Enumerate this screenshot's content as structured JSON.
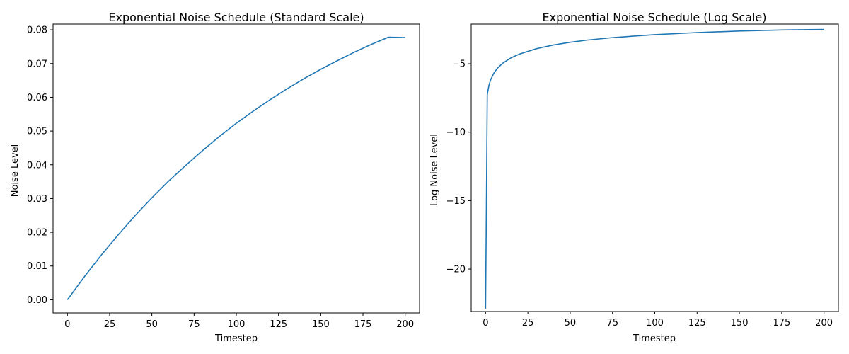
{
  "chart_data": [
    {
      "type": "line",
      "title": "Exponential Noise Schedule (Standard Scale)",
      "xlabel": "Timestep",
      "ylabel": "Noise Level",
      "xlim": [
        -8.5,
        208.5
      ],
      "ylim": [
        -0.0039,
        0.0817
      ],
      "xticks": [
        0,
        25,
        50,
        75,
        100,
        125,
        150,
        175,
        200
      ],
      "xtick_labels": [
        "0",
        "25",
        "50",
        "75",
        "100",
        "125",
        "150",
        "175",
        "200"
      ],
      "yticks": [
        0,
        0.01,
        0.02,
        0.03,
        0.04,
        0.05,
        0.06,
        0.07,
        0.08
      ],
      "ytick_labels": [
        "0.00",
        "0.01",
        "0.02",
        "0.03",
        "0.04",
        "0.05",
        "0.06",
        "0.07",
        "0.08"
      ],
      "grid": false,
      "color": "#1f77b4",
      "series": [
        {
          "x": [
            0,
            10,
            20,
            30,
            40,
            50,
            60,
            70,
            80,
            90,
            100,
            110,
            120,
            130,
            140,
            150,
            160,
            170,
            180,
            190,
            200
          ],
          "y": [
            0.0,
            0.0068,
            0.0132,
            0.0192,
            0.0249,
            0.0302,
            0.0352,
            0.0398,
            0.0442,
            0.0484,
            0.0523,
            0.0559,
            0.0593,
            0.0625,
            0.0655,
            0.0683,
            0.0709,
            0.0734,
            0.0757,
            0.0778,
            0.0777
          ]
        }
      ]
    },
    {
      "type": "line",
      "title": "Exponential Noise Schedule (Log Scale)",
      "xlabel": "Timestep",
      "ylabel": "Log Noise Level",
      "xlim": [
        -8.5,
        208.5
      ],
      "ylim": [
        -23.1,
        -2.1
      ],
      "xticks": [
        0,
        25,
        50,
        75,
        100,
        125,
        150,
        175,
        200
      ],
      "xtick_labels": [
        "0",
        "25",
        "50",
        "75",
        "100",
        "125",
        "150",
        "175",
        "200"
      ],
      "yticks": [
        -20,
        -15,
        -10,
        -5
      ],
      "ytick_labels": [
        "−20",
        "−15",
        "−10",
        "−5"
      ],
      "grid": false,
      "color": "#1f77b4",
      "series": [
        {
          "x": [
            0,
            1,
            2,
            3,
            5,
            7,
            10,
            15,
            20,
            30,
            40,
            50,
            60,
            75,
            100,
            125,
            150,
            175,
            200
          ],
          "y": [
            -22.9,
            -7.25,
            -6.57,
            -6.17,
            -5.66,
            -5.33,
            -4.97,
            -4.57,
            -4.29,
            -3.9,
            -3.63,
            -3.43,
            -3.27,
            -3.09,
            -2.87,
            -2.72,
            -2.61,
            -2.53,
            -2.49
          ]
        }
      ]
    }
  ]
}
